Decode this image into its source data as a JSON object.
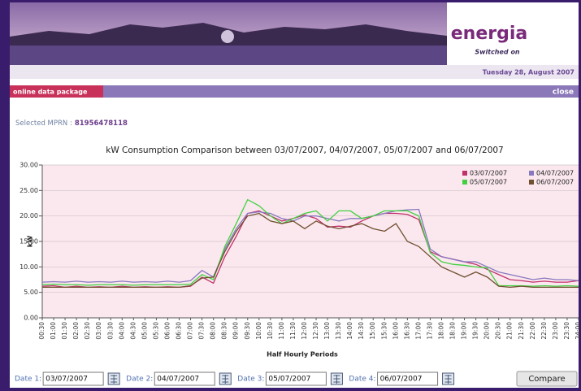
{
  "header": {
    "logo": "energia",
    "tagline": "Switched on",
    "date": "Tuesday 28, August 2007"
  },
  "nav": {
    "section": "online data package",
    "close": "close"
  },
  "mprn": {
    "label": "Selected MPRN :",
    "value": "81956478118"
  },
  "chart_data": {
    "type": "line",
    "title": "kW Consumption Comparison between 03/07/2007, 04/07/2007, 05/07/2007 and 06/07/2007",
    "x_label": "Half Hourly Periods",
    "y_label": "kW",
    "categories": [
      "00:30",
      "01:00",
      "01:30",
      "02:00",
      "02:30",
      "03:00",
      "03:30",
      "04:00",
      "04:30",
      "05:00",
      "05:30",
      "06:00",
      "06:30",
      "07:00",
      "07:30",
      "08:00",
      "08:30",
      "09:00",
      "09:30",
      "10:00",
      "10:30",
      "11:00",
      "11:30",
      "12:00",
      "12:30",
      "13:00",
      "13:30",
      "14:00",
      "14:30",
      "15:00",
      "15:30",
      "16:00",
      "16:30",
      "17:00",
      "17:30",
      "18:00",
      "18:30",
      "19:00",
      "19:30",
      "20:00",
      "20:30",
      "21:00",
      "21:30",
      "22:00",
      "22:30",
      "23:00",
      "23:30",
      "24:00"
    ],
    "series": [
      {
        "name": "03/07/2007",
        "color": "#c0306a",
        "values": [
          6.2,
          6.3,
          6.0,
          6.2,
          6.0,
          6.1,
          6.0,
          6.2,
          6.0,
          6.1,
          6.0,
          6.1,
          6.0,
          6.2,
          8.0,
          6.8,
          12.0,
          16.0,
          20.5,
          21.0,
          20.0,
          19.0,
          19.5,
          20.2,
          19.5,
          17.8,
          18.0,
          17.8,
          19.0,
          20.0,
          20.5,
          20.5,
          20.3,
          19.3,
          13.0,
          12.0,
          11.5,
          11.0,
          10.5,
          9.5,
          8.5,
          7.5,
          7.3,
          7.0,
          7.2,
          7.0,
          7.0,
          7.3
        ]
      },
      {
        "name": "04/07/2007",
        "color": "#8878c0",
        "values": [
          7.0,
          7.1,
          7.0,
          7.2,
          7.0,
          7.1,
          7.0,
          7.2,
          7.0,
          7.1,
          7.0,
          7.2,
          7.0,
          7.3,
          9.3,
          8.0,
          13.5,
          17.5,
          20.5,
          20.8,
          20.5,
          19.5,
          19.0,
          20.0,
          20.0,
          19.5,
          19.0,
          19.5,
          19.5,
          20.0,
          20.5,
          21.0,
          21.2,
          21.3,
          13.5,
          12.0,
          11.5,
          11.0,
          11.0,
          10.0,
          9.0,
          8.5,
          8.0,
          7.5,
          7.8,
          7.5,
          7.5,
          7.3
        ]
      },
      {
        "name": "05/07/2007",
        "color": "#40d040",
        "values": [
          6.5,
          6.6,
          6.5,
          6.5,
          6.4,
          6.5,
          6.5,
          6.5,
          6.4,
          6.5,
          6.5,
          6.5,
          6.5,
          6.6,
          8.5,
          7.5,
          14.0,
          18.5,
          23.2,
          22.0,
          20.0,
          18.5,
          19.5,
          20.5,
          21.0,
          19.0,
          21.0,
          21.0,
          19.5,
          20.0,
          21.0,
          21.0,
          21.0,
          20.0,
          12.8,
          11.0,
          10.5,
          10.3,
          10.0,
          9.8,
          6.3,
          6.3,
          6.3,
          6.2,
          6.3,
          6.2,
          6.3,
          6.2
        ]
      },
      {
        "name": "06/07/2007",
        "color": "#705030",
        "values": [
          6.0,
          6.0,
          6.0,
          6.0,
          6.0,
          6.0,
          6.0,
          6.0,
          6.0,
          6.0,
          6.0,
          6.0,
          6.0,
          6.3,
          7.8,
          8.0,
          13.0,
          17.0,
          20.0,
          20.5,
          19.0,
          18.5,
          19.0,
          17.5,
          19.0,
          18.0,
          17.5,
          18.0,
          18.5,
          17.5,
          17.0,
          18.5,
          15.0,
          14.0,
          12.0,
          10.0,
          9.0,
          8.0,
          9.0,
          8.0,
          6.2,
          6.0,
          6.2,
          6.0,
          6.0,
          6.0,
          6.0,
          6.0
        ]
      }
    ],
    "ylim": [
      0,
      30
    ],
    "yticks": [
      {
        "value": 0,
        "label": "0.00"
      },
      {
        "value": 5,
        "label": "5.00"
      },
      {
        "value": 10,
        "label": "10.00"
      },
      {
        "value": 15,
        "label": "15.00"
      },
      {
        "value": 20,
        "label": "20.00"
      },
      {
        "value": 25,
        "label": "25.00"
      },
      {
        "value": 30,
        "label": "30.00"
      }
    ],
    "grid": true,
    "legend": "top-right",
    "background": "#fbe8ee"
  },
  "form": {
    "dates": [
      {
        "label": "Date 1:",
        "value": "03/07/2007"
      },
      {
        "label": "Date 2:",
        "value": "04/07/2007"
      },
      {
        "label": "Date 3:",
        "value": "05/07/2007"
      },
      {
        "label": "Date 4:",
        "value": "06/07/2007"
      }
    ],
    "button": "Compare"
  }
}
